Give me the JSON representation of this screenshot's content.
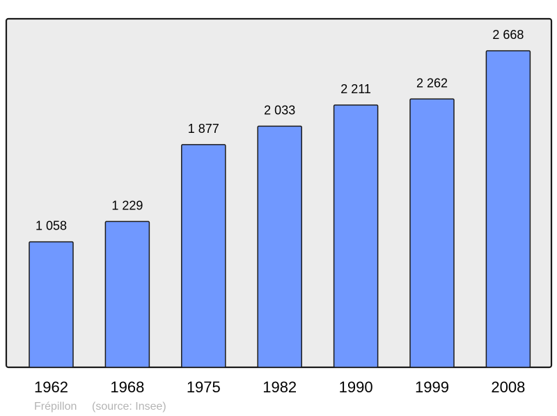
{
  "chart_data": {
    "type": "bar",
    "categories": [
      "1962",
      "1968",
      "1975",
      "1982",
      "1990",
      "1999",
      "2008"
    ],
    "values": [
      1058,
      1229,
      1877,
      2033,
      2211,
      2262,
      2668
    ],
    "value_labels": [
      "1 058",
      "1 229",
      "1 877",
      "2 033",
      "2 211",
      "2 262",
      "2 668"
    ],
    "ylim": [
      0,
      2938
    ],
    "grid": false,
    "bar_color": "#7098ff",
    "background_color": "#ececec",
    "footer": {
      "place": "Frépillon",
      "source": "(source: Insee)"
    }
  }
}
